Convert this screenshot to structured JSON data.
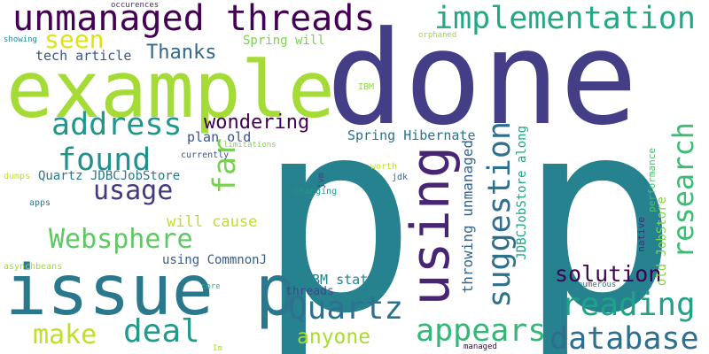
{
  "words": [
    {
      "id": "done",
      "text": "done",
      "color": "#433e85"
    },
    {
      "id": "p1",
      "text": "p",
      "color": "#26828e"
    },
    {
      "id": "p2",
      "text": "p",
      "color": "#26828e"
    },
    {
      "id": "example",
      "text": "example",
      "color": "#a5db36"
    },
    {
      "id": "unmanaged-threads",
      "text": "unmanaged threads",
      "color": "#440154"
    },
    {
      "id": "implementation",
      "text": "implementation",
      "color": "#22a884"
    },
    {
      "id": "issue-p",
      "text": "issue p",
      "color": "#2a788e"
    },
    {
      "id": "using",
      "text": "using",
      "color": "#482475"
    },
    {
      "id": "seen",
      "text": "seen",
      "color": "#dde318"
    },
    {
      "id": "thanks",
      "text": "Thanks",
      "color": "#31688e"
    },
    {
      "id": "spring-will",
      "text": "Spring will",
      "color": "#7ad151"
    },
    {
      "id": "tech-article",
      "text": "tech article",
      "color": "#39568c"
    },
    {
      "id": "address",
      "text": "address",
      "color": "#1f988b"
    },
    {
      "id": "wondering",
      "text": "wondering",
      "color": "#440154"
    },
    {
      "id": "found",
      "text": "found",
      "color": "#21918c"
    },
    {
      "id": "far",
      "text": "far",
      "color": "#7ad151"
    },
    {
      "id": "plan-old",
      "text": "plan old",
      "color": "#3b528b"
    },
    {
      "id": "spring-hibernate",
      "text": "Spring Hibernate",
      "color": "#2c728e"
    },
    {
      "id": "usage",
      "text": "usage",
      "color": "#443983"
    },
    {
      "id": "quartz-jdbc",
      "text": "Quartz JDBCJobStore",
      "color": "#2a788e"
    },
    {
      "id": "websphere",
      "text": "Websphere",
      "color": "#5ec962"
    },
    {
      "id": "will-cause",
      "text": "will cause",
      "color": "#bddf26"
    },
    {
      "id": "using-commnonj",
      "text": "using CommnonJ",
      "color": "#365c8d"
    },
    {
      "id": "ibm-stating",
      "text": "IBM stating",
      "color": "#25848e"
    },
    {
      "id": "quartz",
      "text": "Quartz",
      "color": "#2c728e"
    },
    {
      "id": "threads",
      "text": "threads",
      "color": "#3e4a89"
    },
    {
      "id": "deal",
      "text": "deal",
      "color": "#1e9b8a"
    },
    {
      "id": "make",
      "text": "make",
      "color": "#c2df23"
    },
    {
      "id": "anyone",
      "text": "anyone",
      "color": "#a8db34"
    },
    {
      "id": "appears",
      "text": "appears",
      "color": "#35b779"
    },
    {
      "id": "suggestion",
      "text": "suggestion",
      "color": "#2d708e"
    },
    {
      "id": "research",
      "text": "research",
      "color": "#3dbc74"
    },
    {
      "id": "reading",
      "text": "reading",
      "color": "#1fa287"
    },
    {
      "id": "database",
      "text": "database",
      "color": "#2e6e8e"
    },
    {
      "id": "solution",
      "text": "solution",
      "color": "#440154"
    },
    {
      "id": "throwing-unmanaged",
      "text": "throwing unmanaged",
      "color": "#32648e"
    },
    {
      "id": "jdbcjobstore-along",
      "text": "JDBCJobStore along",
      "color": "#21a685"
    },
    {
      "id": "old-jobstore",
      "text": "old JobStore",
      "color": "#84d44b"
    },
    {
      "id": "native",
      "text": "native",
      "color": "#472c7a"
    },
    {
      "id": "performance",
      "text": "performance",
      "color": "#48c16e"
    },
    {
      "id": "occurences",
      "text": "occurences",
      "color": "#472f7d"
    },
    {
      "id": "showing",
      "text": "showing",
      "color": "#23898e"
    },
    {
      "id": "orphaned",
      "text": "orphaned",
      "color": "#9dd93b"
    },
    {
      "id": "ibm",
      "text": "IBM",
      "color": "#90d743"
    },
    {
      "id": "currently",
      "text": "currently",
      "color": "#3a548c"
    },
    {
      "id": "jvm",
      "text": "jvm",
      "color": "#3f4788"
    },
    {
      "id": "worth",
      "text": "worth",
      "color": "#c0df25"
    },
    {
      "id": "jdk",
      "text": "jdk",
      "color": "#31688e"
    },
    {
      "id": "limitations",
      "text": "limitations",
      "color": "#86d549"
    },
    {
      "id": "dumps",
      "text": "dumps",
      "color": "#c8e020"
    },
    {
      "id": "apps",
      "text": "apps",
      "color": "#2a788e"
    },
    {
      "id": "changing",
      "text": "changing",
      "color": "#1f9a8a"
    },
    {
      "id": "asynchbeans",
      "text": "asynchbeans",
      "color": "#a2da37"
    },
    {
      "id": "core",
      "text": "core",
      "color": "#31b57b"
    },
    {
      "id": "numerous",
      "text": "numerous",
      "color": "#29798e"
    },
    {
      "id": "im",
      "text": "Im",
      "color": "#aadc32"
    },
    {
      "id": "managed",
      "text": "managed",
      "color": "#440154"
    }
  ]
}
